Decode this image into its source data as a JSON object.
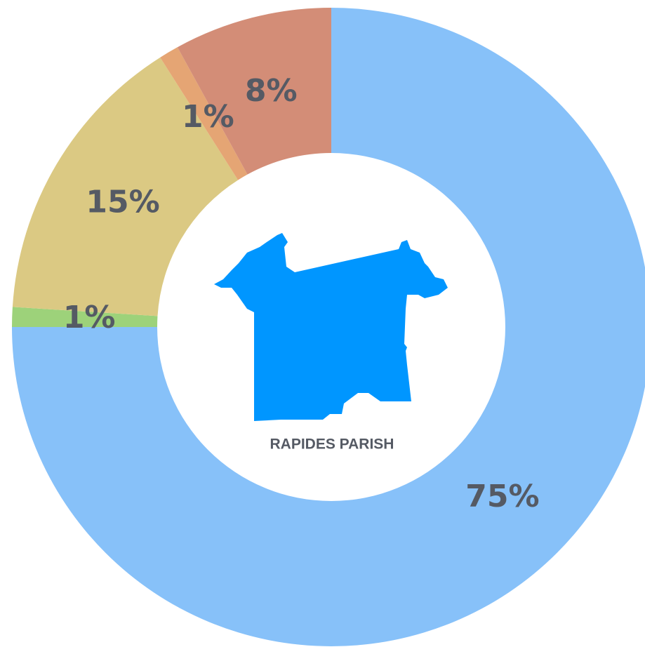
{
  "chart_data": {
    "type": "pie",
    "values": [
      75,
      1,
      15,
      1,
      8
    ],
    "value_labels": [
      "75%",
      "1%",
      "15%",
      "1%",
      "8%"
    ],
    "colors": [
      "#87c1f9",
      "#9dd27a",
      "#dbc983",
      "#e5a574",
      "#d38d77"
    ],
    "center_label": "RAPIDES PARISH"
  }
}
